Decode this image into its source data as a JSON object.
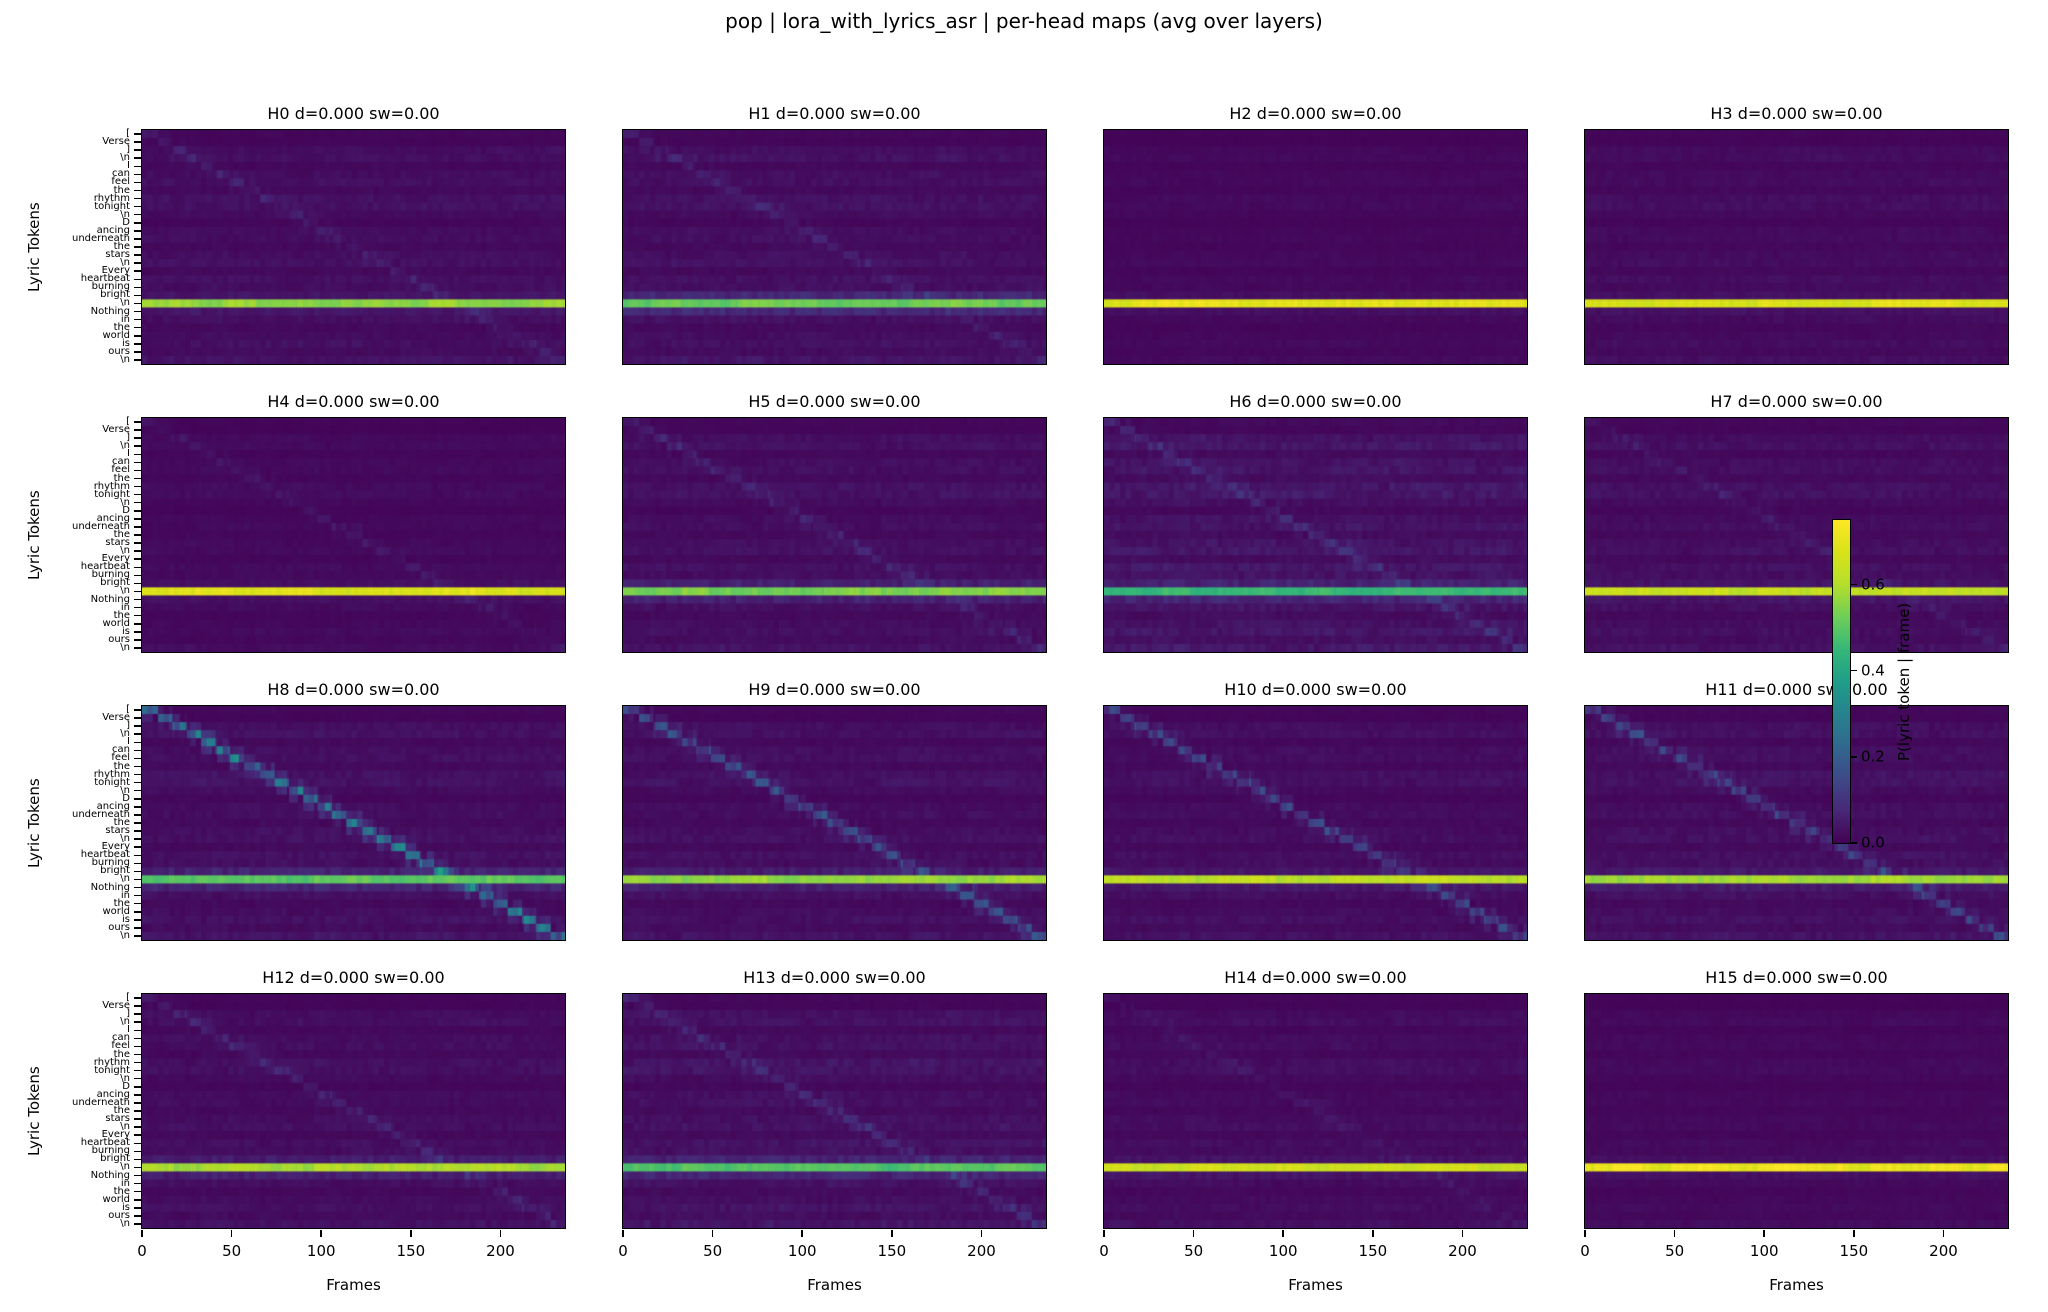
{
  "figure": {
    "suptitle": "pop | lora_with_lyrics_asr | per-head maps (avg over layers)",
    "background": "#ffffff"
  },
  "chart_data": {
    "type": "heatmap",
    "colormap": "viridis",
    "grid_rows": 4,
    "grid_cols": 4,
    "x": {
      "label": "Frames",
      "ticks": [
        0,
        50,
        100,
        150,
        200
      ],
      "range": [
        0,
        236
      ]
    },
    "y": {
      "label": "Lyric Tokens",
      "tokens": [
        "[",
        "Verse",
        "]",
        "\\n",
        "I",
        "can",
        "feel",
        "the",
        "rhythm",
        "tonight",
        "\\n",
        "D",
        "ancing",
        "underneath",
        "the",
        "stars",
        "\\n",
        "Every",
        "heartbeat",
        "burning",
        "bright",
        "\\n",
        "Nothing",
        "in",
        "the",
        "world",
        "is",
        "ours",
        "\\n"
      ]
    },
    "colorbar": {
      "label": "P(lyric token | frame)",
      "ticks": [
        0.0,
        0.2,
        0.4,
        0.6
      ],
      "vmin": 0.0,
      "vmax": 0.75
    },
    "bright_row_index": 21,
    "row_activity": [
      0.22,
      0.15,
      0.5,
      0.6,
      0.25,
      0.5,
      0.55,
      0.3,
      0.62,
      0.65,
      0.4,
      0.2,
      0.45,
      0.5,
      0.3,
      0.5,
      0.6,
      0.3,
      0.6,
      0.5,
      0.3,
      0.0,
      0.35,
      0.55,
      0.3,
      0.45,
      0.6,
      0.4,
      0.7
    ],
    "heads": [
      {
        "head": "H0",
        "label": "H0 d=0.000 sw=0.00",
        "d": "0.000",
        "sw": "0.00",
        "bright_value": 0.58,
        "diagonal_strength": 0.04,
        "noise_level": 1.0,
        "bleed": 0.05,
        "seed": 101
      },
      {
        "head": "H1",
        "label": "H1 d=0.000 sw=0.00",
        "d": "0.000",
        "sw": "0.00",
        "bright_value": 0.54,
        "diagonal_strength": 0.04,
        "noise_level": 1.1,
        "bleed": 0.14,
        "seed": 102
      },
      {
        "head": "H2",
        "label": "H2 d=0.000 sw=0.00",
        "d": "0.000",
        "sw": "0.00",
        "bright_value": 0.72,
        "diagonal_strength": 0.0,
        "noise_level": 0.55,
        "bleed": 0.03,
        "seed": 103
      },
      {
        "head": "H3",
        "label": "H3 d=0.000 sw=0.00",
        "d": "0.000",
        "sw": "0.00",
        "bright_value": 0.71,
        "diagonal_strength": 0.0,
        "noise_level": 0.8,
        "bleed": 0.03,
        "seed": 104
      },
      {
        "head": "H4",
        "label": "H4 d=0.000 sw=0.00",
        "d": "0.000",
        "sw": "0.00",
        "bright_value": 0.71,
        "diagonal_strength": 0.03,
        "noise_level": 0.65,
        "bleed": 0.03,
        "seed": 105
      },
      {
        "head": "H5",
        "label": "H5 d=0.000 sw=0.00",
        "d": "0.000",
        "sw": "0.00",
        "bright_value": 0.56,
        "diagonal_strength": 0.05,
        "noise_level": 1.05,
        "bleed": 0.1,
        "seed": 106
      },
      {
        "head": "H6",
        "label": "H6 d=0.000 sw=0.00",
        "d": "0.000",
        "sw": "0.00",
        "bright_value": 0.47,
        "diagonal_strength": 0.06,
        "noise_level": 1.5,
        "bleed": 0.12,
        "seed": 107
      },
      {
        "head": "H7",
        "label": "H7 d=0.000 sw=0.00",
        "d": "0.000",
        "sw": "0.00",
        "bright_value": 0.66,
        "diagonal_strength": 0.03,
        "noise_level": 1.0,
        "bleed": 0.04,
        "seed": 108
      },
      {
        "head": "H8",
        "label": "H8 d=0.000 sw=0.00",
        "d": "0.000",
        "sw": "0.00",
        "bright_value": 0.52,
        "diagonal_strength": 0.3,
        "noise_level": 1.1,
        "bleed": 0.12,
        "seed": 109
      },
      {
        "head": "H9",
        "label": "H9 d=0.000 sw=0.00",
        "d": "0.000",
        "sw": "0.00",
        "bright_value": 0.59,
        "diagonal_strength": 0.17,
        "noise_level": 1.05,
        "bleed": 0.08,
        "seed": 110
      },
      {
        "head": "H10",
        "label": "H10 d=0.000 sw=0.00",
        "d": "0.000",
        "sw": "0.00",
        "bright_value": 0.64,
        "diagonal_strength": 0.15,
        "noise_level": 0.95,
        "bleed": 0.05,
        "seed": 111
      },
      {
        "head": "H11",
        "label": "H11 d=0.000 sw=0.00",
        "d": "0.000",
        "sw": "0.00",
        "bright_value": 0.61,
        "diagonal_strength": 0.13,
        "noise_level": 1.1,
        "bleed": 0.06,
        "seed": 112
      },
      {
        "head": "H12",
        "label": "H12 d=0.000 sw=0.00",
        "d": "0.000",
        "sw": "0.00",
        "bright_value": 0.61,
        "diagonal_strength": 0.05,
        "noise_level": 0.95,
        "bleed": 0.08,
        "seed": 113
      },
      {
        "head": "H13",
        "label": "H13 d=0.000 sw=0.00",
        "d": "0.000",
        "sw": "0.00",
        "bright_value": 0.51,
        "diagonal_strength": 0.06,
        "noise_level": 1.25,
        "bleed": 0.12,
        "seed": 114
      },
      {
        "head": "H14",
        "label": "H14 d=0.000 sw=0.00",
        "d": "0.000",
        "sw": "0.00",
        "bright_value": 0.68,
        "diagonal_strength": 0.02,
        "noise_level": 0.85,
        "bleed": 0.04,
        "seed": 115
      },
      {
        "head": "H15",
        "label": "H15 d=0.000 sw=0.00",
        "d": "0.000",
        "sw": "0.00",
        "bright_value": 0.74,
        "diagonal_strength": 0.0,
        "noise_level": 0.6,
        "bleed": 0.03,
        "seed": 116
      }
    ],
    "colormap_stops": [
      [
        0.0,
        "#440154"
      ],
      [
        0.1,
        "#482878"
      ],
      [
        0.2,
        "#3e4989"
      ],
      [
        0.3,
        "#31688e"
      ],
      [
        0.4,
        "#26828e"
      ],
      [
        0.5,
        "#1f9e89"
      ],
      [
        0.6,
        "#35b779"
      ],
      [
        0.7,
        "#6ece58"
      ],
      [
        0.8,
        "#b5de2b"
      ],
      [
        0.9,
        "#d8e219"
      ],
      [
        1.0,
        "#fde725"
      ]
    ]
  }
}
